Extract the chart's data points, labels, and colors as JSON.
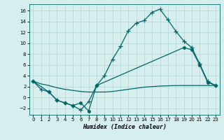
{
  "xlabel": "Humidex (Indice chaleur)",
  "bg_color": "#d6eeee",
  "grid_color": "#b8d8d8",
  "line_color": "#006666",
  "xlim": [
    -0.5,
    23.5
  ],
  "ylim": [
    -3.2,
    17.2
  ],
  "xticks": [
    0,
    1,
    2,
    3,
    4,
    5,
    6,
    7,
    8,
    9,
    10,
    11,
    12,
    13,
    14,
    15,
    16,
    17,
    18,
    19,
    20,
    21,
    22,
    23
  ],
  "yticks": [
    -2,
    0,
    2,
    4,
    6,
    8,
    10,
    12,
    14,
    16
  ],
  "line1_x": [
    0,
    1,
    2,
    3,
    4,
    5,
    6,
    7,
    8,
    9,
    10,
    11,
    12,
    13,
    14,
    15,
    16,
    17,
    18,
    19,
    20,
    21,
    22,
    23
  ],
  "line1_y": [
    3.0,
    1.5,
    1.0,
    -0.5,
    -1.0,
    -1.5,
    -2.3,
    -0.8,
    2.2,
    4.0,
    7.0,
    9.4,
    12.3,
    13.7,
    14.2,
    15.7,
    16.3,
    14.3,
    12.2,
    10.4,
    9.2,
    6.2,
    3.0,
    2.2
  ],
  "line2_x": [
    0,
    2,
    3,
    4,
    5,
    6,
    7,
    8,
    19,
    20,
    21,
    22,
    23
  ],
  "line2_y": [
    3.0,
    1.0,
    -0.5,
    -1.0,
    -1.5,
    -1.0,
    -2.5,
    2.2,
    9.2,
    8.8,
    6.0,
    2.8,
    2.2
  ],
  "line3_x": [
    0,
    1,
    2,
    3,
    4,
    5,
    6,
    7,
    8,
    9,
    10,
    11,
    12,
    13,
    14,
    15,
    16,
    17,
    18,
    19,
    20,
    21,
    22,
    23
  ],
  "line3_y": [
    3.0,
    2.5,
    2.2,
    1.8,
    1.5,
    1.3,
    1.1,
    1.0,
    1.0,
    1.0,
    1.1,
    1.3,
    1.5,
    1.7,
    1.9,
    2.0,
    2.1,
    2.15,
    2.2,
    2.2,
    2.2,
    2.2,
    2.2,
    2.2
  ]
}
